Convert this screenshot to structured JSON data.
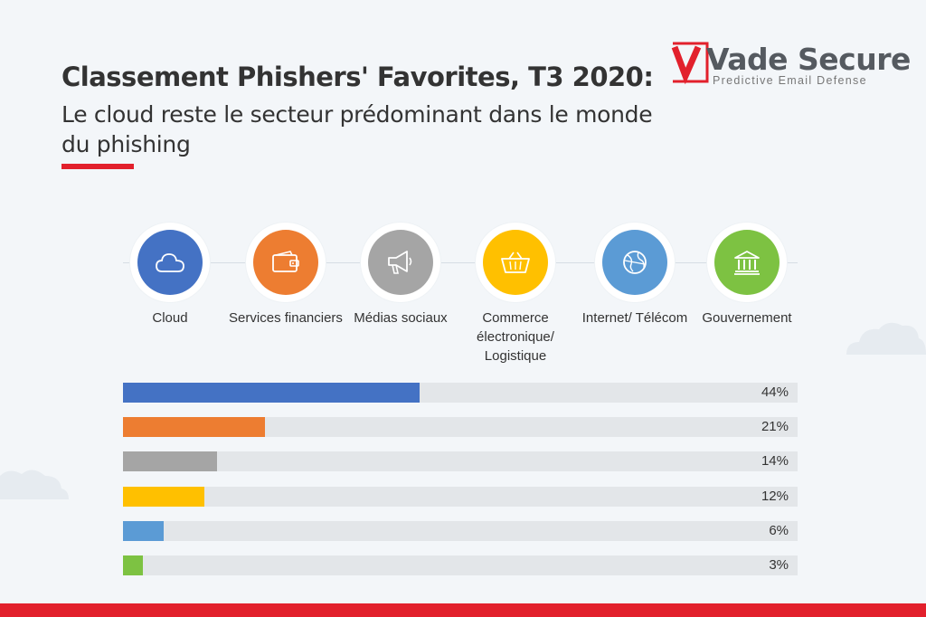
{
  "header": {
    "title": "Classement Phishers' Favorites, T3 2020:",
    "subtitle": "Le cloud reste le secteur prédominant dans le monde du phishing"
  },
  "logo": {
    "name": "Vade Secure",
    "tagline": "Predictive Email Defense",
    "accent_color": "#e2202c"
  },
  "colors": {
    "background": "#f3f6f9",
    "accent": "#e2202c",
    "track": "#e3e6e9"
  },
  "categories": [
    {
      "label": "Cloud",
      "icon": "cloud-icon",
      "color": "#4472c4"
    },
    {
      "label": "Services financiers",
      "icon": "wallet-icon",
      "color": "#ed7d31"
    },
    {
      "label": "Médias sociaux",
      "icon": "megaphone-icon",
      "color": "#a5a5a5"
    },
    {
      "label": "Commerce électronique/ Logistique",
      "icon": "basket-icon",
      "color": "#ffc000"
    },
    {
      "label": "Internet/ Télécom",
      "icon": "globe-icon",
      "color": "#5b9bd5"
    },
    {
      "label": "Gouvernement",
      "icon": "government-building-icon",
      "color": "#7dc242"
    }
  ],
  "chart_data": {
    "type": "bar",
    "orientation": "horizontal",
    "categories": [
      "Cloud",
      "Services financiers",
      "Médias sociaux",
      "Commerce électronique/ Logistique",
      "Internet/ Télécom",
      "Gouvernement"
    ],
    "values": [
      44,
      21,
      14,
      12,
      6,
      3
    ],
    "value_labels": [
      "44%",
      "21%",
      "14%",
      "12%",
      "6%",
      "3%"
    ],
    "colors": [
      "#4472c4",
      "#ed7d31",
      "#a5a5a5",
      "#ffc000",
      "#5b9bd5",
      "#7dc242"
    ],
    "xlim": [
      0,
      100
    ],
    "unit": "%",
    "title": "Classement Phishers' Favorites, T3 2020:",
    "subtitle": "Le cloud reste le secteur prédominant dans le monde du phishing",
    "legend": "icons above bars",
    "grid": false
  }
}
